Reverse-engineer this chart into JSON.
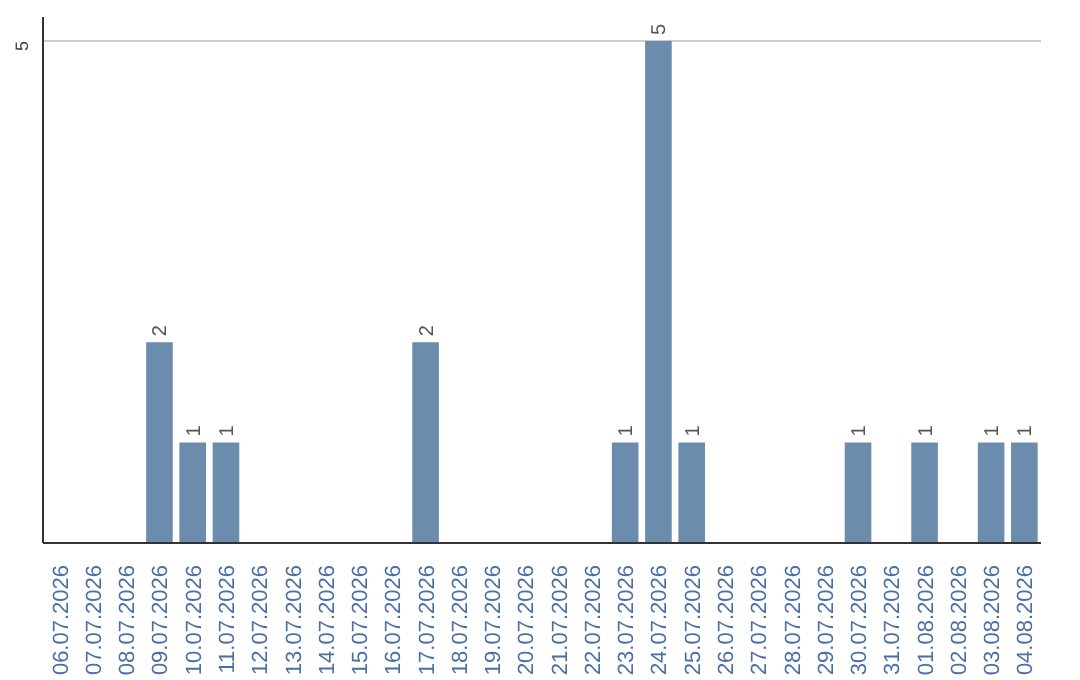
{
  "chart_data": {
    "type": "bar",
    "categories": [
      "06.07.2026",
      "07.07.2026",
      "08.07.2026",
      "09.07.2026",
      "10.07.2026",
      "11.07.2026",
      "12.07.2026",
      "13.07.2026",
      "14.07.2026",
      "15.07.2026",
      "16.07.2026",
      "17.07.2026",
      "18.07.2026",
      "19.07.2026",
      "20.07.2026",
      "21.07.2026",
      "22.07.2026",
      "23.07.2026",
      "24.07.2026",
      "25.07.2026",
      "26.07.2026",
      "27.07.2026",
      "28.07.2026",
      "29.07.2026",
      "30.07.2026",
      "31.07.2026",
      "01.08.2026",
      "02.08.2026",
      "03.08.2026",
      "04.08.2026"
    ],
    "values": [
      null,
      null,
      null,
      2,
      1,
      1,
      null,
      null,
      null,
      null,
      null,
      2,
      null,
      null,
      null,
      null,
      null,
      1,
      5,
      1,
      null,
      null,
      null,
      null,
      1,
      null,
      1,
      null,
      1,
      1
    ],
    "color": "#6b8cad",
    "ylim": [
      0,
      5.24
    ],
    "yticks": [
      5
    ],
    "grid": "y",
    "data_labels": true
  }
}
